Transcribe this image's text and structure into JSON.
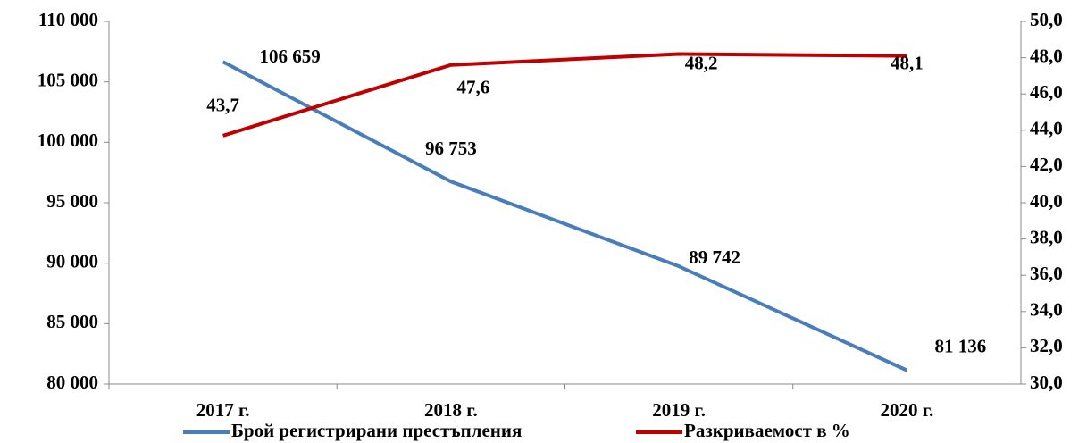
{
  "chart_data": {
    "type": "line",
    "categories": [
      "2017 г.",
      "2018 г.",
      "2019 г.",
      "2020 г."
    ],
    "series": [
      {
        "name": "Брой регистрирани престъпления",
        "color": "#4a7ebb",
        "values": [
          106659,
          96753,
          89742,
          81136
        ],
        "value_labels": [
          "106 659",
          "96 753",
          "89 742",
          "81 136"
        ]
      },
      {
        "name": "Разкриваемост в %",
        "color": "#c00000",
        "axis": "y2",
        "values": [
          43.7,
          47.6,
          48.2,
          48.1
        ],
        "value_labels": [
          "43,7",
          "47,6",
          "48,2",
          "48,1"
        ]
      }
    ],
    "ylim": [
      80000,
      110000
    ],
    "yticks": [
      {
        "value": 80000,
        "label": "80 000"
      },
      {
        "value": 85000,
        "label": "85 000"
      },
      {
        "value": 90000,
        "label": "90 000"
      },
      {
        "value": 95000,
        "label": "95 000"
      },
      {
        "value": 100000,
        "label": "100 000"
      },
      {
        "value": 105000,
        "label": "105 000"
      },
      {
        "value": 110000,
        "label": "110 000"
      }
    ],
    "y2lim": [
      30,
      50
    ],
    "y2ticks": [
      {
        "value": 30,
        "label": "30,0"
      },
      {
        "value": 32,
        "label": "32,0"
      },
      {
        "value": 34,
        "label": "34,0"
      },
      {
        "value": 36,
        "label": "36,0"
      },
      {
        "value": 38,
        "label": "38,0"
      },
      {
        "value": 40,
        "label": "40,0"
      },
      {
        "value": 42,
        "label": "42,0"
      },
      {
        "value": 44,
        "label": "44,0"
      },
      {
        "value": 46,
        "label": "46,0"
      },
      {
        "value": 48,
        "label": "48,0"
      },
      {
        "value": 50,
        "label": "50,0"
      }
    ],
    "legend": "bottom"
  }
}
